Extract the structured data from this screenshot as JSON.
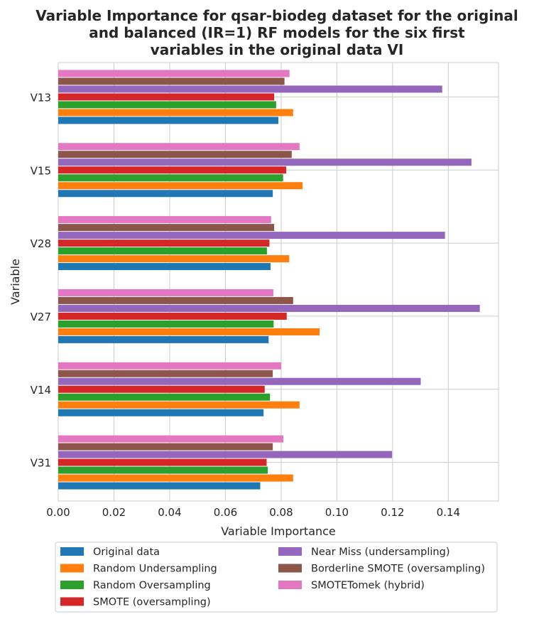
{
  "chart_data": {
    "type": "bar",
    "orientation": "horizontal",
    "title_lines": [
      "Variable Importance for qsar-biodeg dataset for the original",
      "and balanced (IR=1) RF models for the six first",
      "variables in the original data VI"
    ],
    "xlabel": "Variable Importance",
    "ylabel": "Variable",
    "categories": [
      "V13",
      "V15",
      "V28",
      "V27",
      "V14",
      "V31"
    ],
    "xlim": [
      0,
      0.158
    ],
    "xticks": [
      0.0,
      0.02,
      0.04,
      0.06,
      0.08,
      0.1,
      0.12,
      0.14
    ],
    "xtick_labels": [
      "0.00",
      "0.02",
      "0.04",
      "0.06",
      "0.08",
      "0.10",
      "0.12",
      "0.14"
    ],
    "grid": true,
    "legend_position": "bottom-outside",
    "series": [
      {
        "name": "Original data",
        "color": "#1f77b4",
        "values": [
          0.079,
          0.077,
          0.0762,
          0.0755,
          0.0737,
          0.0725
        ]
      },
      {
        "name": "Random Undersampling",
        "color": "#ff7f0e",
        "values": [
          0.0843,
          0.0877,
          0.0829,
          0.0938,
          0.0866,
          0.0843
        ]
      },
      {
        "name": "Random Oversampling",
        "color": "#2ca02c",
        "values": [
          0.0782,
          0.0807,
          0.0749,
          0.0773,
          0.076,
          0.0752
        ]
      },
      {
        "name": "SMOTE (oversampling)",
        "color": "#d62728",
        "values": [
          0.0775,
          0.0818,
          0.0758,
          0.082,
          0.0741,
          0.0748
        ]
      },
      {
        "name": "Near Miss (undersampling)",
        "color": "#9467bd",
        "values": [
          0.1378,
          0.1483,
          0.1388,
          0.1513,
          0.1301,
          0.1198
        ]
      },
      {
        "name": "Borderline SMOTE (oversampling)",
        "color": "#8c564b",
        "values": [
          0.0812,
          0.0838,
          0.0775,
          0.0843,
          0.077,
          0.077
        ]
      },
      {
        "name": "SMOTETomek (hybrid)",
        "color": "#e377c2",
        "values": [
          0.083,
          0.0866,
          0.0764,
          0.0772,
          0.08,
          0.0808
        ]
      }
    ]
  }
}
